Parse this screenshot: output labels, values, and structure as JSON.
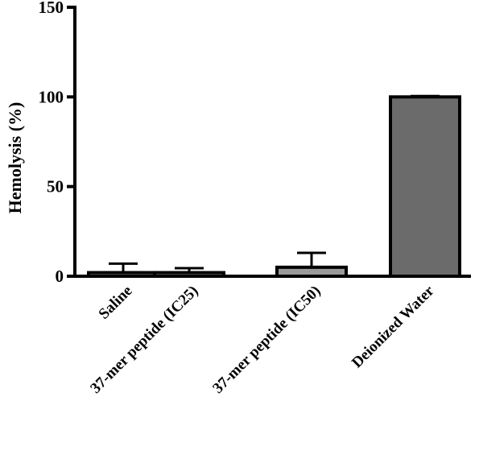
{
  "chart_data": {
    "type": "bar",
    "title": "",
    "xlabel": "",
    "ylabel": "Hemolysis (%)",
    "categories": [
      "Saline",
      "37-mer peptide (IC25)",
      "37-mer peptide (IC50)",
      "Deionized Water"
    ],
    "values": [
      2,
      2,
      5,
      100
    ],
    "error_upper": [
      7,
      4.5,
      13,
      100.5
    ],
    "ylim": [
      0,
      150
    ],
    "yticks": [
      "0",
      "50",
      "100",
      "150"
    ],
    "colors": {
      "bars": [
        "#9a9a9a",
        "#9a9a9a",
        "#9a9a9a",
        "#6b6b6b"
      ],
      "stroke": "#000000"
    },
    "grid": false,
    "legend": "none"
  }
}
